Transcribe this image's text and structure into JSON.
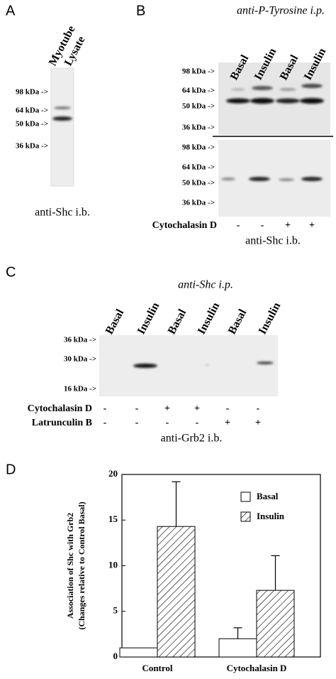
{
  "panel_a": {
    "label": "A",
    "lane_label": [
      "Myotube",
      "Lysate"
    ],
    "markers": [
      "98 kDa ->",
      "64 kDa ->",
      "50 kDa ->",
      "36 kDa ->"
    ],
    "caption": "anti-Shc i.b."
  },
  "panel_b": {
    "label": "B",
    "title": "anti-P-Tyrosine i.p.",
    "lanes": [
      "Basal",
      "Insulin",
      "Basal",
      "Insulin"
    ],
    "markers_top": [
      "98 kDa ->",
      "64 kDa ->",
      "50 kDa ->",
      "36 kDa ->"
    ],
    "markers_bottom": [
      "98 kDa ->",
      "64 kDa ->",
      "50 kDa ->",
      "36 kDa ->"
    ],
    "treatment": {
      "name": "Cytochalasin D",
      "marks": [
        "-",
        "-",
        "+",
        "+"
      ]
    },
    "caption": "anti-Shc i.b."
  },
  "panel_c": {
    "label": "C",
    "title": "anti-Shc i.p.",
    "lanes": [
      "Basal",
      "Insulin",
      "Basal",
      "Insulin",
      "Basal",
      "Insulin"
    ],
    "markers": [
      "36 kDa ->",
      "30 kDa ->",
      "16 kDa ->"
    ],
    "treatments": [
      {
        "name": "Cytochalasin D",
        "marks": [
          "-",
          "-",
          "+",
          "+",
          "-",
          "-"
        ]
      },
      {
        "name": "Latrunculin B",
        "marks": [
          "-",
          "-",
          "-",
          "-",
          "+",
          "+"
        ]
      }
    ],
    "caption": "anti-Grb2 i.b."
  },
  "chart_data": {
    "type": "bar",
    "label": "D",
    "y_label": [
      "Association of Shc with Grb2",
      "(Changes relative to Control Basal)"
    ],
    "categories": [
      "Control",
      "Cytochalasin D"
    ],
    "series": [
      {
        "name": "Basal",
        "color": "#ffffff",
        "hatch": false,
        "values": [
          1,
          2
        ],
        "errors": [
          null,
          1.2
        ]
      },
      {
        "name": "Insulin",
        "color": "#ffffff",
        "hatch": true,
        "values": [
          14.3,
          7.3
        ],
        "errors": [
          4.9,
          3.8
        ]
      }
    ],
    "ylim": [
      0,
      20
    ],
    "yticks": [
      0,
      5,
      10,
      15,
      20
    ]
  }
}
